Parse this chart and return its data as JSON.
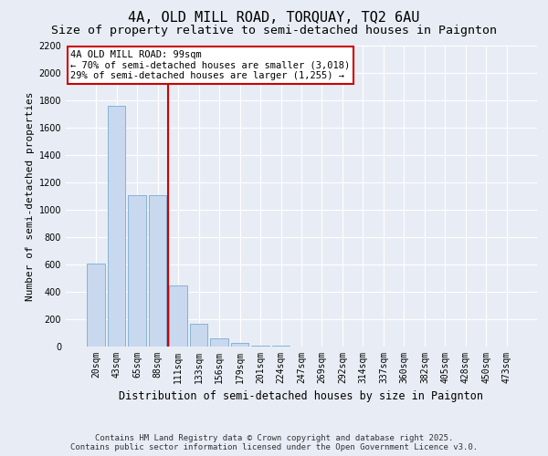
{
  "title": "4A, OLD MILL ROAD, TORQUAY, TQ2 6AU",
  "subtitle": "Size of property relative to semi-detached houses in Paignton",
  "xlabel": "Distribution of semi-detached houses by size in Paignton",
  "ylabel": "Number of semi-detached properties",
  "categories": [
    "20sqm",
    "43sqm",
    "65sqm",
    "88sqm",
    "111sqm",
    "133sqm",
    "156sqm",
    "179sqm",
    "201sqm",
    "224sqm",
    "247sqm",
    "269sqm",
    "292sqm",
    "314sqm",
    "337sqm",
    "360sqm",
    "382sqm",
    "405sqm",
    "428sqm",
    "450sqm",
    "473sqm"
  ],
  "values": [
    610,
    1760,
    1110,
    1110,
    450,
    170,
    60,
    25,
    10,
    5,
    2,
    1,
    0,
    0,
    0,
    0,
    0,
    0,
    0,
    0,
    0
  ],
  "bar_color": "#c8d8ee",
  "bar_edge_color": "#7aaad0",
  "marker_index": 3.5,
  "marker_color": "#cc0000",
  "annotation_text": "4A OLD MILL ROAD: 99sqm\n← 70% of semi-detached houses are smaller (3,018)\n29% of semi-detached houses are larger (1,255) →",
  "annotation_box_facecolor": "#ffffff",
  "annotation_box_edgecolor": "#cc0000",
  "ylim": [
    0,
    2200
  ],
  "yticks": [
    0,
    200,
    400,
    600,
    800,
    1000,
    1200,
    1400,
    1600,
    1800,
    2000,
    2200
  ],
  "background_color": "#e8edf5",
  "grid_color": "#ffffff",
  "footer_line1": "Contains HM Land Registry data © Crown copyright and database right 2025.",
  "footer_line2": "Contains public sector information licensed under the Open Government Licence v3.0.",
  "title_fontsize": 11,
  "subtitle_fontsize": 9.5,
  "tick_fontsize": 7,
  "ylabel_fontsize": 8,
  "xlabel_fontsize": 8.5,
  "annotation_fontsize": 7.5,
  "footer_fontsize": 6.5
}
